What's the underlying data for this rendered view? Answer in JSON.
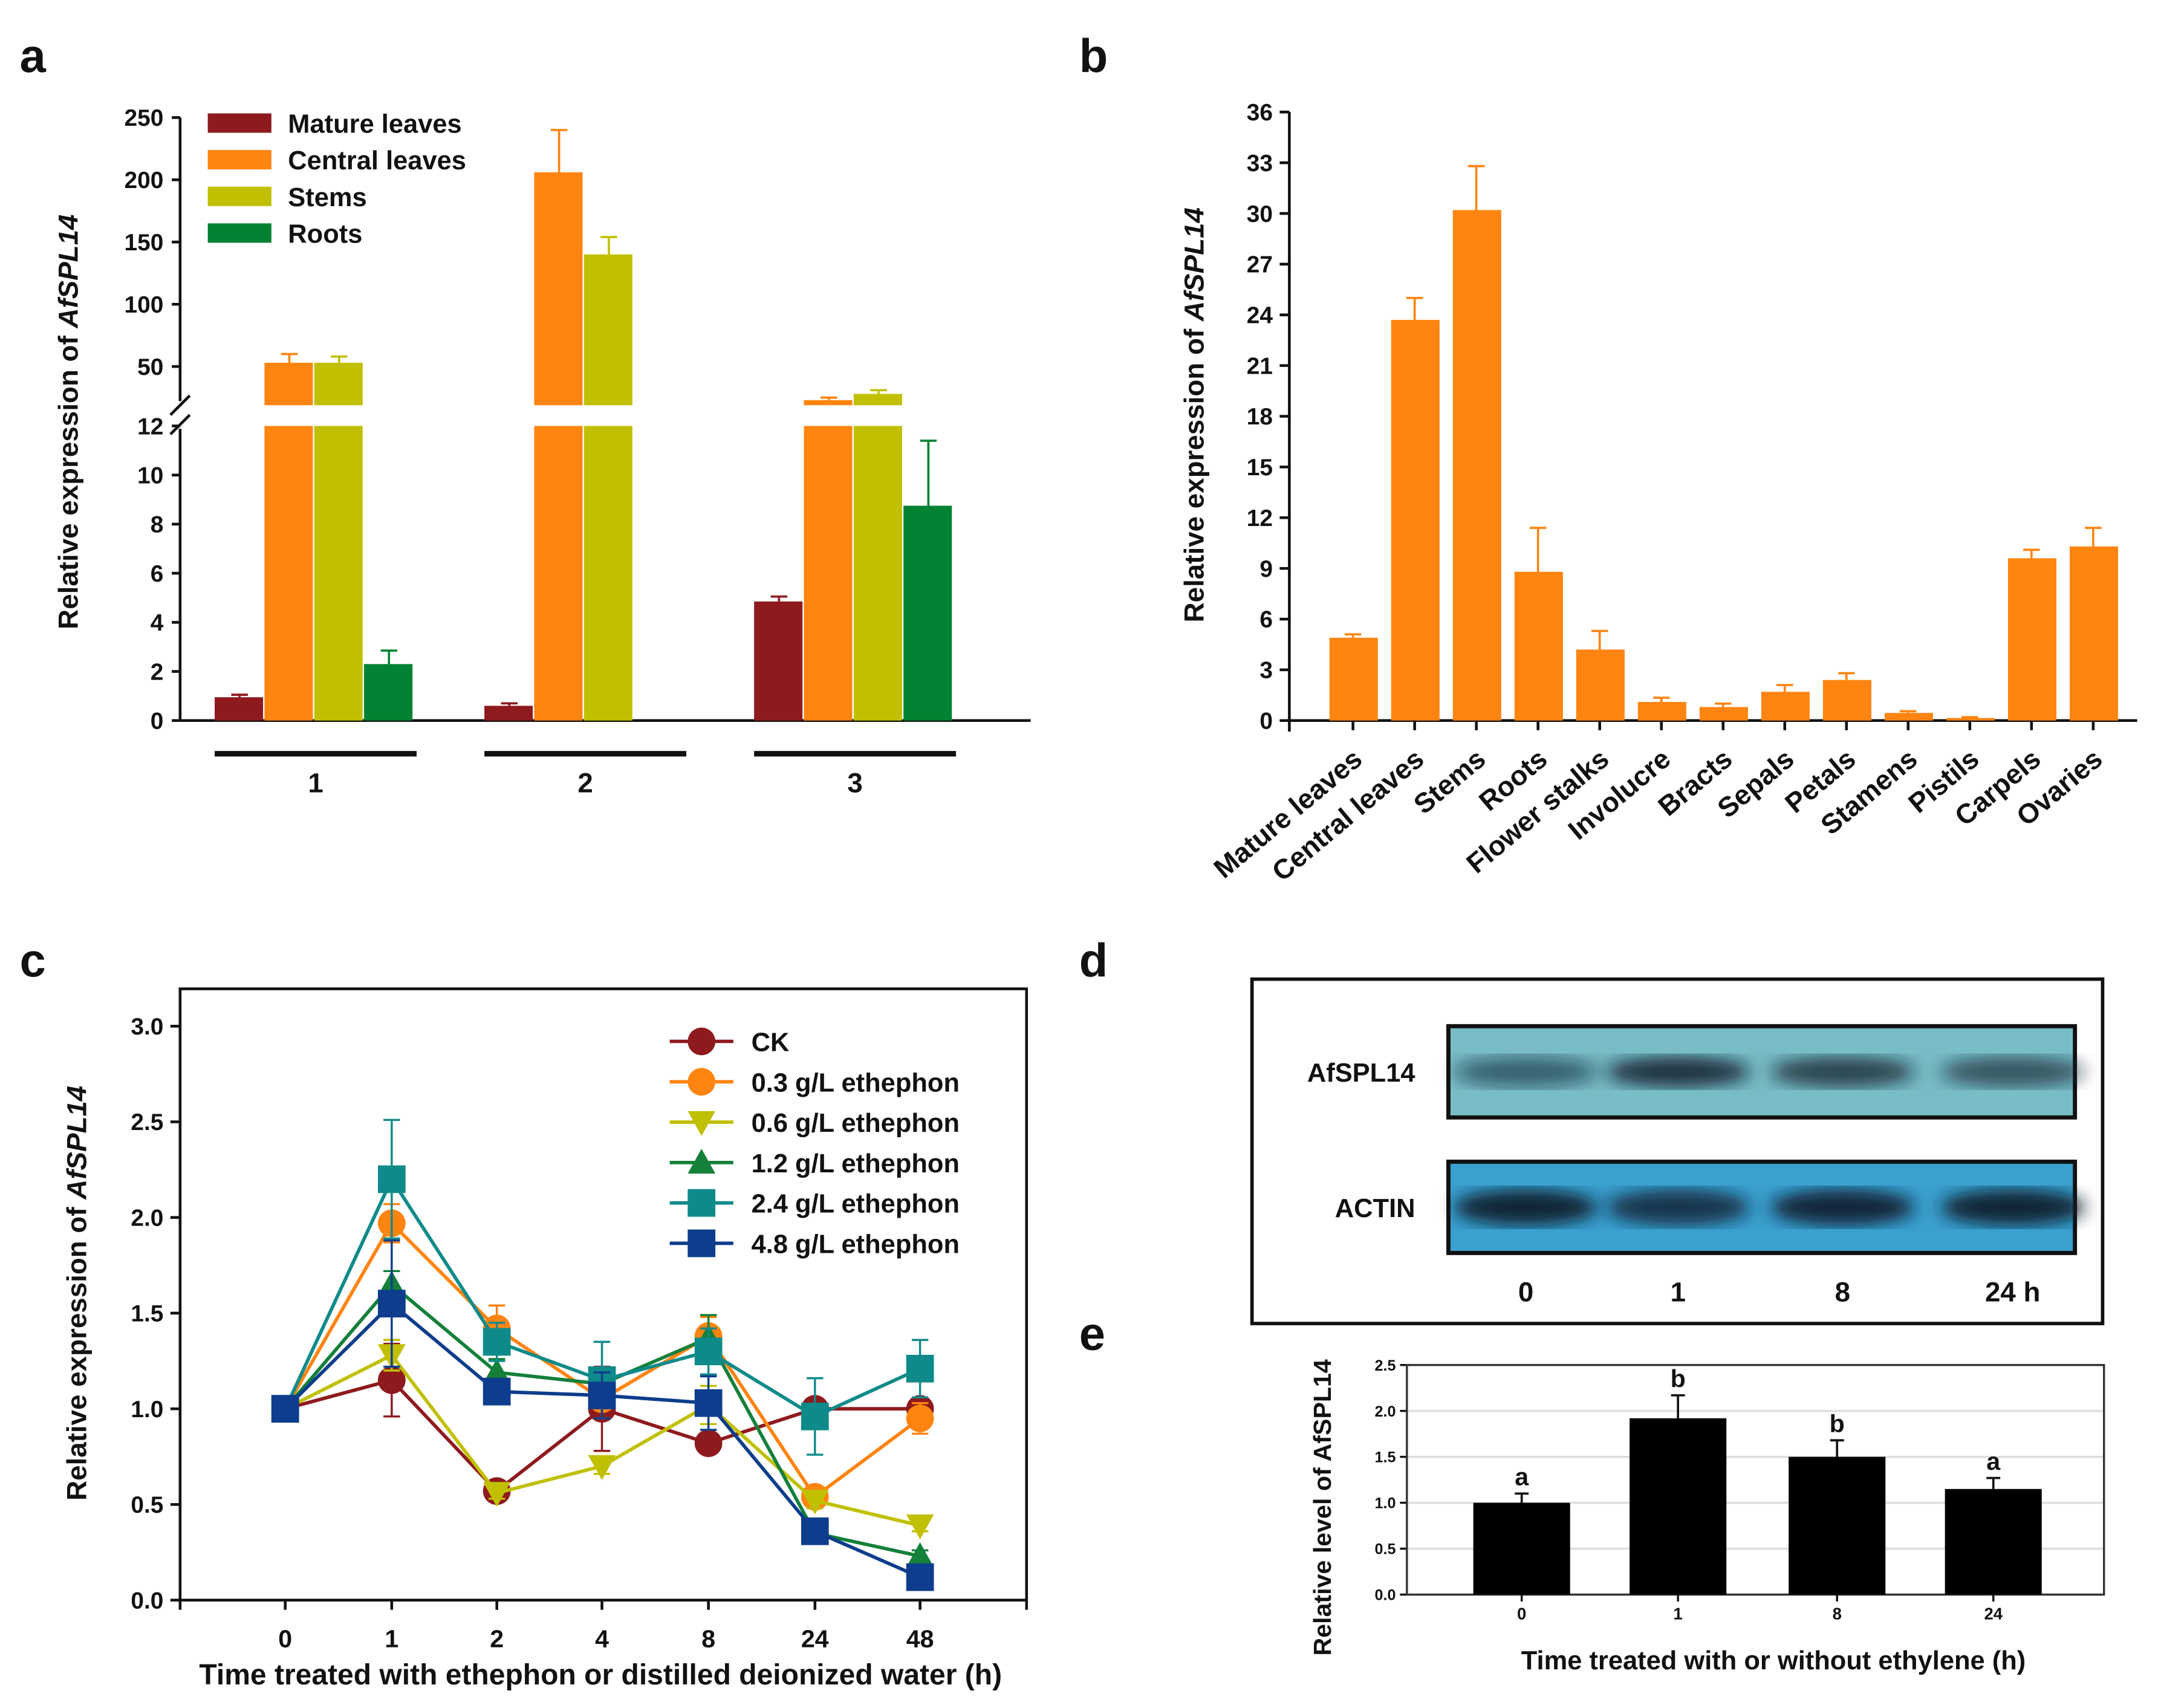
{
  "panel_letters": {
    "a": "a",
    "b": "b",
    "c": "c",
    "d": "d",
    "e": "e"
  },
  "chart_data": [
    {
      "id": "a",
      "type": "bar",
      "ylabel_prefix": "Relative expression of ",
      "ylabel_gene": "AfSPL14",
      "categories": [
        "1",
        "2",
        "3"
      ],
      "y_broken_axis": {
        "lower_range": [
          0,
          12
        ],
        "upper_range": [
          19,
          250
        ]
      },
      "yticks_lower": [
        "0",
        "2",
        "4",
        "6",
        "8",
        "10",
        "12"
      ],
      "yticks_upper": [
        "50",
        "100",
        "150",
        "200",
        "250"
      ],
      "legend_position": "top-left",
      "series": [
        {
          "name": "Mature leaves",
          "color": "#8e1a1e",
          "values": [
            0.95,
            0.6,
            4.85
          ],
          "err": [
            0.1,
            0.1,
            0.2
          ]
        },
        {
          "name": "Central leaves",
          "color": "#ff8410",
          "values": [
            53,
            206,
            23
          ],
          "err": [
            7,
            34,
            2
          ]
        },
        {
          "name": "Stems",
          "color": "#c0c000",
          "values": [
            53,
            140,
            28
          ],
          "err": [
            5,
            14,
            3
          ]
        },
        {
          "name": "Roots",
          "color": "#008232",
          "values": [
            2.3,
            null,
            8.75
          ],
          "err": [
            0.55,
            null,
            2.65
          ]
        }
      ]
    },
    {
      "id": "b",
      "type": "bar",
      "ylabel_prefix": "Relative expression of ",
      "ylabel_gene": "AfSPL14",
      "ylim": [
        0,
        36
      ],
      "yticks": [
        "0",
        "3",
        "6",
        "9",
        "12",
        "15",
        "18",
        "21",
        "24",
        "27",
        "30",
        "33",
        "36"
      ],
      "color": "#ff8410",
      "categories": [
        "Mature leaves",
        "Central leaves",
        "Stems",
        "Roots",
        "Flower stalks",
        "Involucre",
        "Bracts",
        "Sepals",
        "Petals",
        "Stamens",
        "Pistils",
        "Carpels",
        "Ovaries"
      ],
      "values": [
        4.9,
        23.7,
        30.2,
        8.8,
        4.2,
        1.1,
        0.8,
        1.7,
        2.4,
        0.45,
        0.15,
        9.6,
        10.3
      ],
      "err": [
        0.2,
        1.3,
        2.6,
        2.6,
        1.1,
        0.25,
        0.2,
        0.4,
        0.4,
        0.1,
        0.05,
        0.5,
        1.1
      ]
    },
    {
      "id": "c",
      "type": "line",
      "xlabel": "Time treated with ethephon or distilled deionized water (h)",
      "ylabel_prefix": "Relative expression of ",
      "ylabel_gene": "AfSPL14",
      "x": [
        "0",
        "1",
        "2",
        "4",
        "8",
        "24",
        "48"
      ],
      "ylim": [
        0,
        3.2
      ],
      "yticks": [
        "0.0",
        "0.5",
        "1.0",
        "1.5",
        "2.0",
        "2.5",
        "3.0"
      ],
      "legend_position": "top-right",
      "series": [
        {
          "name": "CK",
          "color": "#8e1a1e",
          "marker": "circle",
          "values": [
            1.0,
            1.15,
            0.57,
            1.0,
            0.82,
            1.0,
            1.0
          ],
          "err": [
            0.03,
            0.19,
            0.03,
            0.22,
            0.05,
            0.05,
            0.05
          ]
        },
        {
          "name": "0.3 g/L ethephon",
          "color": "#ff8410",
          "marker": "circle",
          "values": [
            1.0,
            1.97,
            1.42,
            1.05,
            1.38,
            0.54,
            0.95
          ],
          "err": [
            0.03,
            0.1,
            0.12,
            0.1,
            0.1,
            0.05,
            0.08
          ]
        },
        {
          "name": "0.6 g/L ethephon",
          "color": "#c0c000",
          "marker": "triangle-down",
          "values": [
            1.0,
            1.28,
            0.56,
            0.7,
            1.02,
            0.52,
            0.39
          ],
          "err": [
            0.03,
            0.08,
            0.03,
            0.04,
            0.1,
            0.04,
            0.03
          ]
        },
        {
          "name": "1.2 g/L ethephon",
          "color": "#14803a",
          "marker": "triangle-up",
          "values": [
            1.0,
            1.65,
            1.19,
            1.13,
            1.37,
            0.35,
            0.23
          ],
          "err": [
            0.03,
            0.07,
            0.07,
            0.05,
            0.12,
            0.03,
            0.03
          ]
        },
        {
          "name": "2.4 g/L ethephon",
          "color": "#0f8a8a",
          "marker": "square",
          "values": [
            1.0,
            2.2,
            1.35,
            1.15,
            1.3,
            0.96,
            1.21
          ],
          "err": [
            0.03,
            0.31,
            0.1,
            0.2,
            0.12,
            0.2,
            0.15
          ]
        },
        {
          "name": "4.8 g/L ethephon",
          "color": "#0d3d8c",
          "marker": "square",
          "values": [
            1.0,
            1.55,
            1.09,
            1.07,
            1.03,
            0.36,
            0.12
          ],
          "err": [
            0.03,
            0.33,
            0.05,
            0.12,
            0.14,
            0.03,
            0.02
          ]
        }
      ]
    },
    {
      "id": "d",
      "type": "other",
      "blot_labels": [
        "AfSPL14",
        "ACTIN"
      ],
      "lanes": [
        "0",
        "1",
        "8",
        "24 h"
      ],
      "band_intensity_afspl14": [
        0.55,
        0.85,
        0.75,
        0.65
      ],
      "band_intensity_actin": [
        0.95,
        0.8,
        0.9,
        0.95
      ]
    },
    {
      "id": "e",
      "type": "bar",
      "xlabel": "Time treated with or without ethylene (h)",
      "ylabel": "Relative level of AfSPL14",
      "ylim": [
        0,
        2.5
      ],
      "yticks": [
        "0.0",
        "0.5",
        "1.0",
        "1.5",
        "2.0",
        "2.5"
      ],
      "grid": true,
      "categories": [
        "0",
        "1",
        "8",
        "24"
      ],
      "values": [
        1.0,
        1.92,
        1.5,
        1.15
      ],
      "err": [
        0.1,
        0.25,
        0.18,
        0.12
      ],
      "significance": [
        "a",
        "b",
        "b",
        "a"
      ],
      "color": "#000000"
    }
  ]
}
